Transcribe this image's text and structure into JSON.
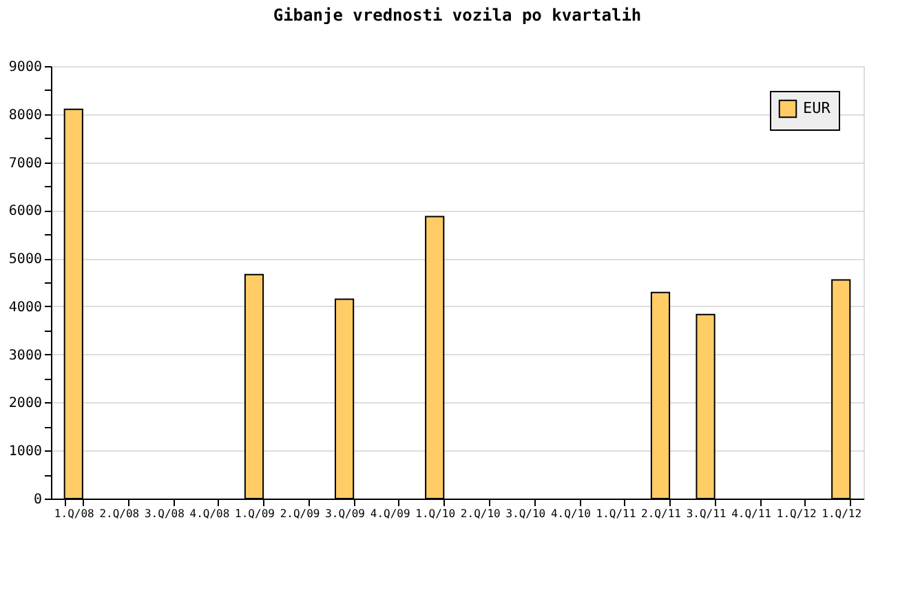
{
  "chart_data": {
    "type": "bar",
    "title": "Gibanje vrednosti vozila po kvartalih",
    "categories": [
      "1.Q/08",
      "2.Q/08",
      "3.Q/08",
      "4.Q/08",
      "1.Q/09",
      "2.Q/09",
      "3.Q/09",
      "4.Q/09",
      "1.Q/10",
      "2.Q/10",
      "3.Q/10",
      "4.Q/10",
      "1.Q/11",
      "2.Q/11",
      "3.Q/11",
      "4.Q/11",
      "1.Q/12",
      "1.Q/12"
    ],
    "series": [
      {
        "name": "EUR",
        "color": "#ffcc66",
        "values": [
          8100,
          null,
          null,
          null,
          4660,
          null,
          4150,
          null,
          5870,
          null,
          null,
          null,
          null,
          4290,
          3830,
          null,
          null,
          4550
        ]
      }
    ],
    "ylim": [
      0,
      9000
    ],
    "yticks": [
      0,
      {
        "value": 500,
        "label": null
      },
      1000,
      {
        "value": 1500,
        "label": null
      },
      2000,
      {
        "value": 2500,
        "label": null
      },
      3000,
      {
        "value": 3500,
        "label": null
      },
      4000,
      {
        "value": 4500,
        "label": null
      },
      5000,
      {
        "value": 5500,
        "label": null
      },
      6000,
      {
        "value": 6500,
        "label": null
      },
      7000,
      {
        "value": 7500,
        "label": null
      },
      8000,
      {
        "value": 8500,
        "label": null
      },
      9000
    ],
    "grid": "y",
    "legend": "top right"
  }
}
